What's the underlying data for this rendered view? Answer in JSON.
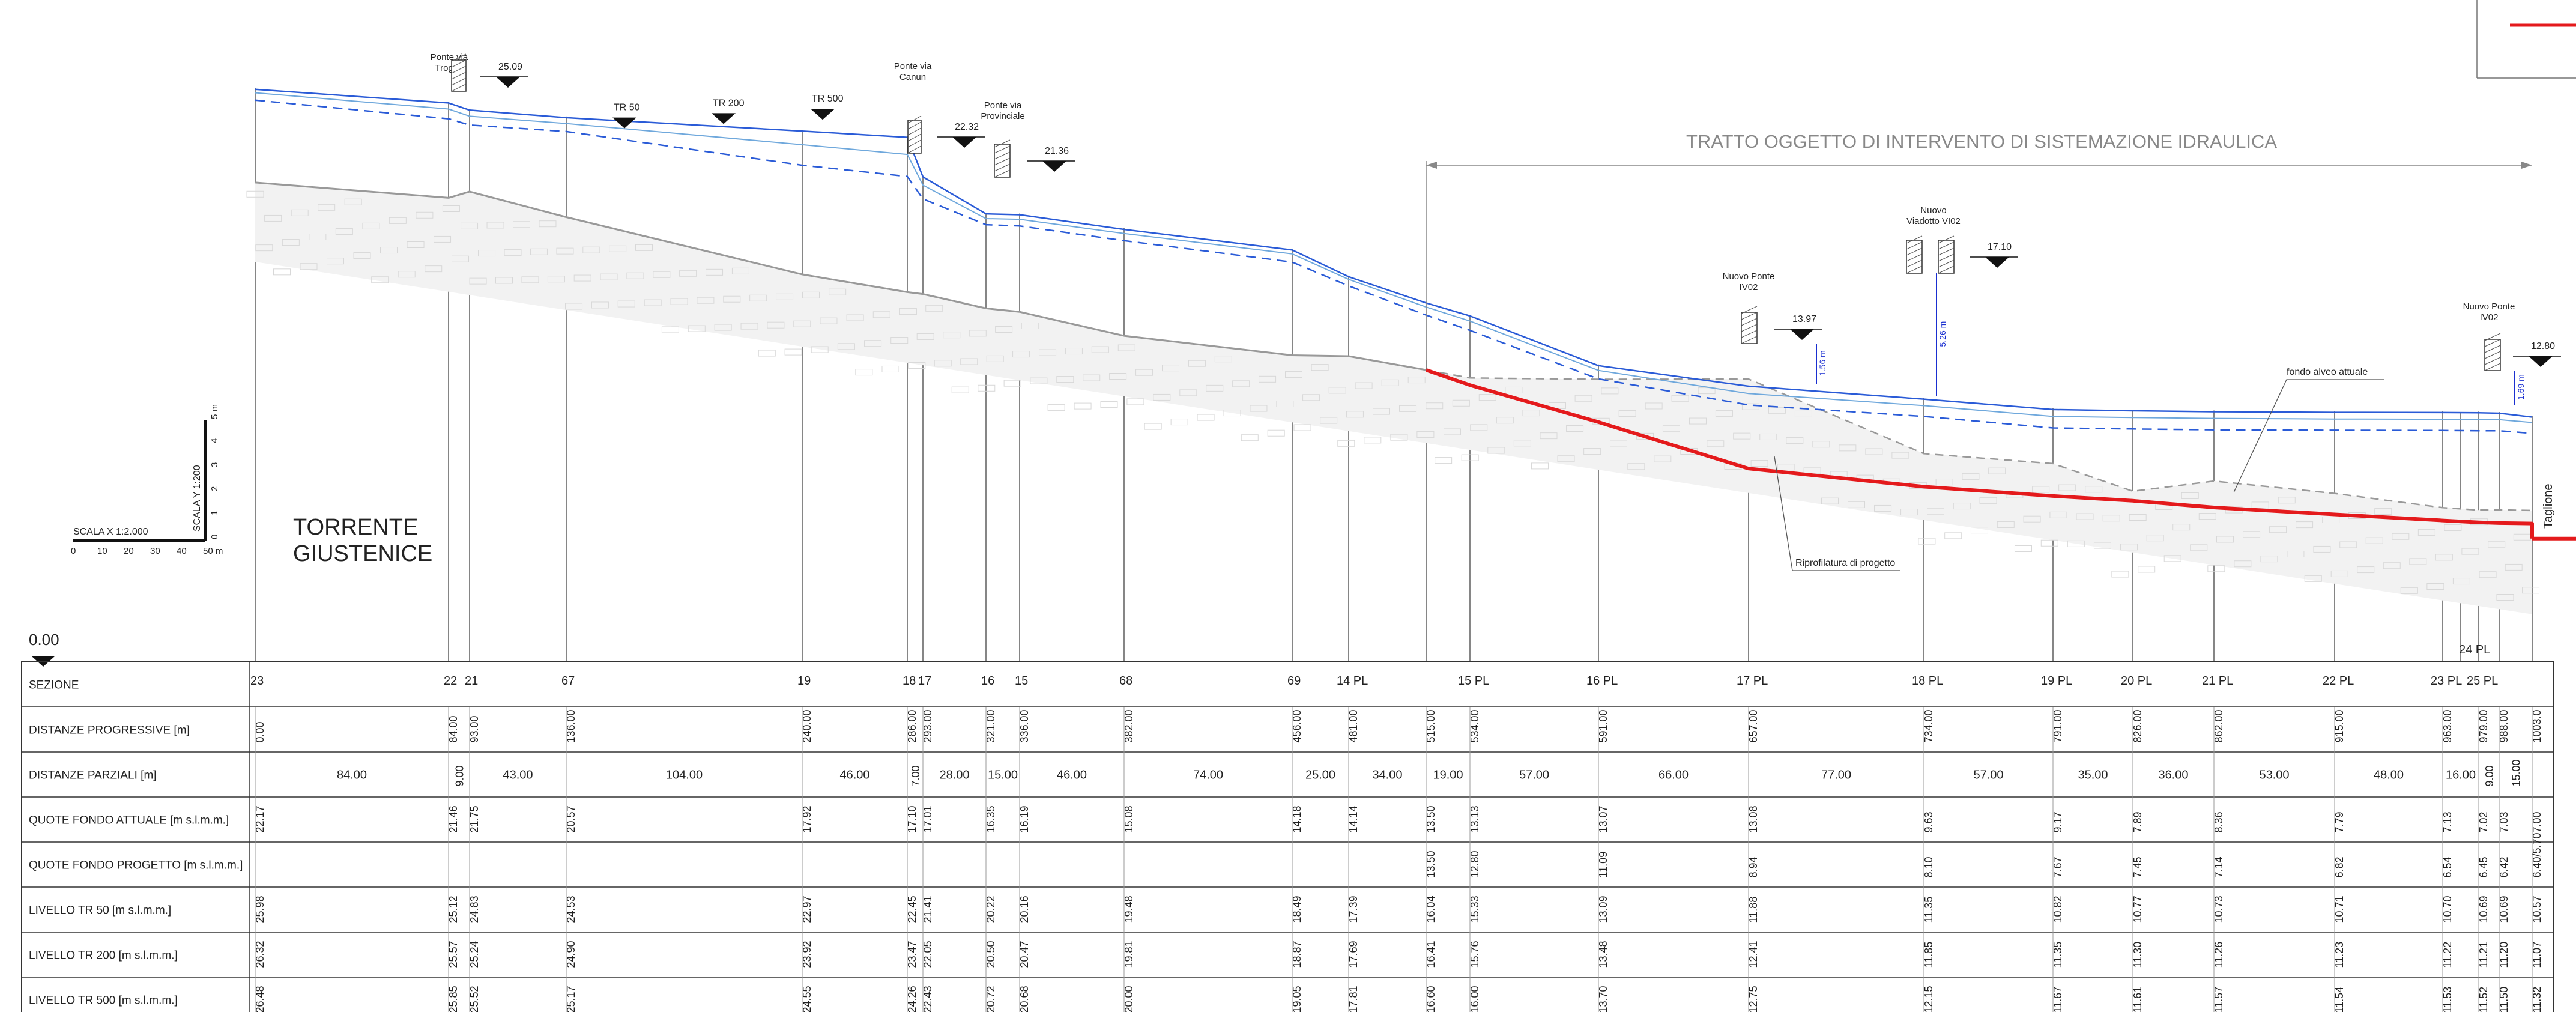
{
  "river_name": [
    "TORRENTE",
    "GIUSTENICE"
  ],
  "reference_elevation": "0.00",
  "intervention_label": "TRATTO OGGETTO DI INTERVENTO DI SISTEMAZIONE IDRAULICA",
  "scale_x": {
    "label": "SCALA X  1:2.000",
    "ticks": [
      "0",
      "10",
      "20",
      "30",
      "40",
      "50 m"
    ]
  },
  "scale_y": {
    "label": "SCALA Y 1:200",
    "ticks": [
      "0",
      "1",
      "2",
      "3",
      "4",
      "5 m"
    ]
  },
  "table": {
    "rows": [
      "SEZIONE",
      "DISTANZE PROGRESSIVE [m]",
      "DISTANZE PARZIALI [m]",
      "QUOTE FONDO ATTUALE [m s.l.m.m.]",
      "QUOTE FONDO PROGETTO [m s.l.m.m.]",
      "LIVELLO TR 50 [m s.l.m.m.]",
      "LIVELLO TR 200 [m s.l.m.m.]",
      "LIVELLO TR 500 [m s.l.m.m.]"
    ]
  },
  "sections": [
    {
      "name": "23",
      "prog": "0.00",
      "fondo": "22.17",
      "progetto": "",
      "tr50": "25.98",
      "tr200": "26.32",
      "tr500": "26.48"
    },
    {
      "name": "22",
      "prog": "84.00",
      "fondo": "21.46",
      "progetto": "",
      "tr50": "25.12",
      "tr200": "25.57",
      "tr500": "25.85"
    },
    {
      "name": "21",
      "prog": "93.00",
      "fondo": "21.75",
      "progetto": "",
      "tr50": "24.83",
      "tr200": "25.24",
      "tr500": "25.52"
    },
    {
      "name": "67",
      "prog": "136.00",
      "fondo": "20.57",
      "progetto": "",
      "tr50": "24.53",
      "tr200": "24.90",
      "tr500": "25.17"
    },
    {
      "name": "19",
      "prog": "240.00",
      "fondo": "17.92",
      "progetto": "",
      "tr50": "22.97",
      "tr200": "23.92",
      "tr500": "24.55"
    },
    {
      "name": "18",
      "prog": "286.00",
      "fondo": "17.10",
      "progetto": "",
      "tr50": "22.45",
      "tr200": "23.47",
      "tr500": "24.26"
    },
    {
      "name": "17",
      "prog": "293.00",
      "fondo": "17.01",
      "progetto": "",
      "tr50": "21.41",
      "tr200": "22.05",
      "tr500": "22.43"
    },
    {
      "name": "16",
      "prog": "321.00",
      "fondo": "16.35",
      "progetto": "",
      "tr50": "20.22",
      "tr200": "20.50",
      "tr500": "20.72"
    },
    {
      "name": "15",
      "prog": "336.00",
      "fondo": "16.19",
      "progetto": "",
      "tr50": "20.16",
      "tr200": "20.47",
      "tr500": "20.68"
    },
    {
      "name": "68",
      "prog": "382.00",
      "fondo": "15.08",
      "progetto": "",
      "tr50": "19.48",
      "tr200": "19.81",
      "tr500": "20.00"
    },
    {
      "name": "69",
      "prog": "456.00",
      "fondo": "14.18",
      "progetto": "",
      "tr50": "18.49",
      "tr200": "18.87",
      "tr500": "19.05"
    },
    {
      "name": "14 PL",
      "prog": "481.00",
      "fondo": "14.14",
      "progetto": "",
      "tr50": "17.39",
      "tr200": "17.69",
      "tr500": "17.81"
    },
    {
      "name": "",
      "prog": "515.00",
      "fondo": "13.50",
      "progetto": "13.50",
      "tr50": "16.04",
      "tr200": "16.41",
      "tr500": "16.60"
    },
    {
      "name": "15 PL",
      "prog": "534.00",
      "fondo": "13.13",
      "progetto": "12.80",
      "tr50": "15.33",
      "tr200": "15.76",
      "tr500": "16.00"
    },
    {
      "name": "16 PL",
      "prog": "591.00",
      "fondo": "13.07",
      "progetto": "11.09",
      "tr50": "13.09",
      "tr200": "13.48",
      "tr500": "13.70"
    },
    {
      "name": "17 PL",
      "prog": "657.00",
      "fondo": "13.08",
      "progetto": "8.94",
      "tr50": "11.88",
      "tr200": "12.41",
      "tr500": "12.75"
    },
    {
      "name": "18 PL",
      "prog": "734.00",
      "fondo": "9.63",
      "progetto": "8.10",
      "tr50": "11.35",
      "tr200": "11.85",
      "tr500": "12.15"
    },
    {
      "name": "19 PL",
      "prog": "791.00",
      "fondo": "9.17",
      "progetto": "7.67",
      "tr50": "10.82",
      "tr200": "11.35",
      "tr500": "11.67"
    },
    {
      "name": "20 PL",
      "prog": "826.00",
      "fondo": "7.89",
      "progetto": "7.45",
      "tr50": "10.77",
      "tr200": "11.30",
      "tr500": "11.61"
    },
    {
      "name": "21 PL",
      "prog": "862.00",
      "fondo": "8.36",
      "progetto": "7.14",
      "tr50": "10.73",
      "tr200": "11.26",
      "tr500": "11.57"
    },
    {
      "name": "22 PL",
      "prog": "915.00",
      "fondo": "7.79",
      "progetto": "6.82",
      "tr50": "10.71",
      "tr200": "11.23",
      "tr500": "11.54"
    },
    {
      "name": "23 PL",
      "prog": "963.00",
      "fondo": "7.13",
      "progetto": "6.54",
      "tr50": "10.70",
      "tr200": "11.22",
      "tr500": "11.53"
    },
    {
      "name": "25 PL",
      "prog": "979.00",
      "fondo": "7.02",
      "progetto": "6.45",
      "tr50": "10.69",
      "tr200": "11.21",
      "tr500": "11.52"
    },
    {
      "name": "",
      "prog": "988.00",
      "fondo": "7.03",
      "progetto": "6.42",
      "tr50": "10.69",
      "tr200": "11.20",
      "tr500": "11.50"
    },
    {
      "name": "",
      "prog": "1003.0",
      "fondo": "7.00",
      "progetto": "6.40/5.70",
      "tr50": "10.57",
      "tr200": "11.07",
      "tr500": "11.32"
    }
  ],
  "partial_distances": [
    {
      "from": 0,
      "to": 84,
      "label": "84.00"
    },
    {
      "from": 84,
      "to": 93,
      "label": "9.00",
      "vertical": true
    },
    {
      "from": 93,
      "to": 136,
      "label": "43.00"
    },
    {
      "from": 136,
      "to": 240,
      "label": "104.00"
    },
    {
      "from": 240,
      "to": 286,
      "label": "46.00"
    },
    {
      "from": 286,
      "to": 293,
      "label": "7.00",
      "vertical": true
    },
    {
      "from": 293,
      "to": 321,
      "label": "28.00"
    },
    {
      "from": 321,
      "to": 336,
      "label": "15.00"
    },
    {
      "from": 336,
      "to": 382,
      "label": "46.00"
    },
    {
      "from": 382,
      "to": 456,
      "label": "74.00"
    },
    {
      "from": 456,
      "to": 481,
      "label": "25.00"
    },
    {
      "from": 481,
      "to": 515,
      "label": "34.00"
    },
    {
      "from": 515,
      "to": 534,
      "label": "19.00"
    },
    {
      "from": 534,
      "to": 591,
      "label": "57.00"
    },
    {
      "from": 591,
      "to": 657,
      "label": "66.00"
    },
    {
      "from": 657,
      "to": 734,
      "label": "77.00"
    },
    {
      "from": 734,
      "to": 791,
      "label": "57.00"
    },
    {
      "from": 791,
      "to": 826,
      "label": "35.00"
    },
    {
      "from": 826,
      "to": 862,
      "label": "36.00"
    },
    {
      "from": 862,
      "to": 915,
      "label": "53.00"
    },
    {
      "from": 915,
      "to": 963,
      "label": "48.00"
    },
    {
      "from": 963,
      "to": 979,
      "label": "16.00"
    },
    {
      "from": 979,
      "to": 988,
      "label": "9.00",
      "vertical": true
    },
    {
      "from": 988,
      "to": 1003,
      "label": "15.00",
      "vertical": true
    }
  ],
  "profile_lines": {
    "color_tr": "#2a5bd7",
    "color_tr_light": "#6fa8dc",
    "color_progetto": "#e41a1c",
    "color_fondo": "#999999",
    "tr500": [
      [
        0,
        26.48
      ],
      [
        84,
        25.85
      ],
      [
        93,
        25.52
      ],
      [
        136,
        25.17
      ],
      [
        240,
        24.55
      ],
      [
        286,
        24.26
      ],
      [
        293,
        22.43
      ],
      [
        321,
        20.72
      ],
      [
        336,
        20.68
      ],
      [
        382,
        20.0
      ],
      [
        456,
        19.05
      ],
      [
        481,
        17.81
      ],
      [
        515,
        16.6
      ],
      [
        534,
        16.0
      ],
      [
        591,
        13.7
      ],
      [
        657,
        12.75
      ],
      [
        734,
        12.15
      ],
      [
        791,
        11.67
      ],
      [
        826,
        11.61
      ],
      [
        862,
        11.57
      ],
      [
        915,
        11.54
      ],
      [
        963,
        11.53
      ],
      [
        979,
        11.52
      ],
      [
        988,
        11.5
      ],
      [
        1003,
        11.32
      ]
    ],
    "tr200": [
      [
        0,
        26.32
      ],
      [
        84,
        25.57
      ],
      [
        93,
        25.24
      ],
      [
        136,
        24.9
      ],
      [
        240,
        23.92
      ],
      [
        286,
        23.47
      ],
      [
        293,
        22.05
      ],
      [
        321,
        20.5
      ],
      [
        336,
        20.47
      ],
      [
        382,
        19.81
      ],
      [
        456,
        18.87
      ],
      [
        481,
        17.69
      ],
      [
        515,
        16.41
      ],
      [
        534,
        15.76
      ],
      [
        591,
        13.48
      ],
      [
        657,
        12.41
      ],
      [
        734,
        11.85
      ],
      [
        791,
        11.35
      ],
      [
        826,
        11.3
      ],
      [
        862,
        11.26
      ],
      [
        915,
        11.23
      ],
      [
        963,
        11.22
      ],
      [
        979,
        11.21
      ],
      [
        988,
        11.2
      ],
      [
        1003,
        11.07
      ]
    ],
    "tr50": [
      [
        0,
        25.98
      ],
      [
        84,
        25.12
      ],
      [
        93,
        24.83
      ],
      [
        136,
        24.53
      ],
      [
        240,
        22.97
      ],
      [
        286,
        22.45
      ],
      [
        293,
        21.41
      ],
      [
        321,
        20.22
      ],
      [
        336,
        20.16
      ],
      [
        382,
        19.48
      ],
      [
        456,
        18.49
      ],
      [
        481,
        17.39
      ],
      [
        515,
        16.04
      ],
      [
        534,
        15.33
      ],
      [
        591,
        13.09
      ],
      [
        657,
        11.88
      ],
      [
        734,
        11.35
      ],
      [
        791,
        10.82
      ],
      [
        826,
        10.77
      ],
      [
        862,
        10.73
      ],
      [
        915,
        10.71
      ],
      [
        963,
        10.7
      ],
      [
        979,
        10.69
      ],
      [
        988,
        10.69
      ],
      [
        1003,
        10.57
      ]
    ],
    "fondo": [
      [
        0,
        22.17
      ],
      [
        84,
        21.46
      ],
      [
        93,
        21.75
      ],
      [
        136,
        20.57
      ],
      [
        240,
        17.92
      ],
      [
        286,
        17.1
      ],
      [
        293,
        17.01
      ],
      [
        321,
        16.35
      ],
      [
        336,
        16.19
      ],
      [
        382,
        15.08
      ],
      [
        456,
        14.18
      ],
      [
        481,
        14.14
      ],
      [
        515,
        13.5
      ],
      [
        534,
        13.13
      ],
      [
        591,
        13.07
      ],
      [
        657,
        13.08
      ],
      [
        734,
        9.63
      ],
      [
        791,
        9.17
      ],
      [
        826,
        7.89
      ],
      [
        862,
        8.36
      ],
      [
        915,
        7.79
      ],
      [
        963,
        7.13
      ],
      [
        979,
        7.02
      ],
      [
        988,
        7.03
      ],
      [
        1003,
        7.0
      ]
    ],
    "progetto": [
      [
        515,
        13.5
      ],
      [
        534,
        12.8
      ],
      [
        591,
        11.09
      ],
      [
        657,
        8.94
      ],
      [
        734,
        8.1
      ],
      [
        791,
        7.67
      ],
      [
        826,
        7.45
      ],
      [
        862,
        7.14
      ],
      [
        915,
        6.82
      ],
      [
        963,
        6.54
      ],
      [
        979,
        6.45
      ],
      [
        988,
        6.42
      ],
      [
        1003,
        6.4
      ],
      [
        1003,
        5.7
      ]
    ]
  },
  "bridges": [
    {
      "title": [
        "Ponte via",
        "Trogeo"
      ],
      "level": "25.09"
    },
    {
      "title": [
        "Ponte via",
        "Canun"
      ],
      "level": "22.32"
    },
    {
      "title": [
        "Ponte via",
        "Provinciale"
      ],
      "level": "21.36"
    },
    {
      "title": [
        "Nuovo Ponte",
        "IV02"
      ],
      "level": "13.97",
      "clearance": "1.56 m"
    },
    {
      "title": [
        "Nuovo",
        "Viadotto VI02"
      ],
      "level": "17.10",
      "clearance": "5.26 m"
    },
    {
      "title": [
        "Nuovo Ponte",
        "IV02"
      ],
      "level": "12.80",
      "clearance": "1.69 m"
    }
  ],
  "tr_labels": [
    "TR 50",
    "TR 200",
    "TR 500"
  ],
  "annotations": {
    "riprofilatura": "Riprofilatura di progetto",
    "fondo_alveo": "fondo alveo attuale",
    "taglione": "Taglione",
    "extra_section": "24 PL"
  }
}
